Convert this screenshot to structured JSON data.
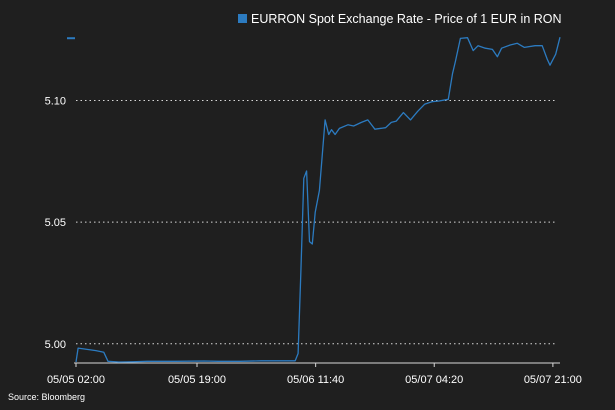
{
  "chart_data": {
    "type": "line",
    "legend": {
      "label": "EURRON Spot Exchange Rate - Price of 1 EUR in RON",
      "placement": "top"
    },
    "source": "Source: Bloomberg",
    "series_color": "#2c7bc0",
    "background": "#1f1f1f",
    "ylim": [
      4.9925,
      5.1265
    ],
    "yticks": [
      {
        "value": 5.0,
        "label": "5.00"
      },
      {
        "value": 5.05,
        "label": "5.05"
      },
      {
        "value": 5.1,
        "label": "5.10"
      }
    ],
    "xticks": [
      {
        "t": 0,
        "label": "05/05 02:00"
      },
      {
        "t": 17,
        "label": "05/05 19:00"
      },
      {
        "t": 33.67,
        "label": "05/06 11:40"
      },
      {
        "t": 50.33,
        "label": "05/07 04:20"
      },
      {
        "t": 67,
        "label": "05/07 21:00"
      }
    ],
    "grid": "dotted horizontal",
    "series": [
      {
        "points": [
          [
            0,
            4.9925
          ],
          [
            0.3,
            4.9982
          ],
          [
            1.3,
            4.9978
          ],
          [
            2.8,
            4.9972
          ],
          [
            3.9,
            4.9965
          ],
          [
            4.5,
            4.9928
          ],
          [
            6.0,
            4.9925
          ],
          [
            8.0,
            4.9926
          ],
          [
            10.0,
            4.9928
          ],
          [
            14.0,
            4.9928
          ],
          [
            18.0,
            4.9929
          ],
          [
            20.0,
            4.9928
          ],
          [
            23.0,
            4.9928
          ],
          [
            26.0,
            4.993
          ],
          [
            30.8,
            4.993
          ],
          [
            31.2,
            4.996
          ],
          [
            31.6,
            5.03
          ],
          [
            32.0,
            5.068
          ],
          [
            32.4,
            5.071
          ],
          [
            32.8,
            5.042
          ],
          [
            33.2,
            5.041
          ],
          [
            33.6,
            5.054
          ],
          [
            34.2,
            5.063
          ],
          [
            35.0,
            5.092
          ],
          [
            35.5,
            5.086
          ],
          [
            35.9,
            5.088
          ],
          [
            36.4,
            5.086
          ],
          [
            37.0,
            5.0885
          ],
          [
            38.2,
            5.09
          ],
          [
            39.0,
            5.0895
          ],
          [
            40.1,
            5.091
          ],
          [
            41.0,
            5.092
          ],
          [
            42.0,
            5.0882
          ],
          [
            43.5,
            5.0888
          ],
          [
            44.3,
            5.091
          ],
          [
            45.0,
            5.0915
          ],
          [
            46.0,
            5.095
          ],
          [
            47.0,
            5.092
          ],
          [
            48.0,
            5.0955
          ],
          [
            49.0,
            5.0985
          ],
          [
            50.0,
            5.0995
          ],
          [
            51.0,
            5.0998
          ],
          [
            52.3,
            5.1005
          ],
          [
            52.9,
            5.111
          ],
          [
            53.3,
            5.116
          ],
          [
            54.0,
            5.1255
          ],
          [
            55.0,
            5.1258
          ],
          [
            55.8,
            5.1205
          ],
          [
            56.5,
            5.1225
          ],
          [
            57.5,
            5.1215
          ],
          [
            58.5,
            5.121
          ],
          [
            59.2,
            5.118
          ],
          [
            59.8,
            5.1215
          ],
          [
            61.0,
            5.1228
          ],
          [
            62.0,
            5.1235
          ],
          [
            63.0,
            5.1218
          ],
          [
            64.5,
            5.1225
          ],
          [
            65.5,
            5.1225
          ],
          [
            66.2,
            5.117
          ],
          [
            66.6,
            5.1145
          ],
          [
            67.4,
            5.119
          ],
          [
            68.0,
            5.126
          ]
        ]
      }
    ]
  }
}
